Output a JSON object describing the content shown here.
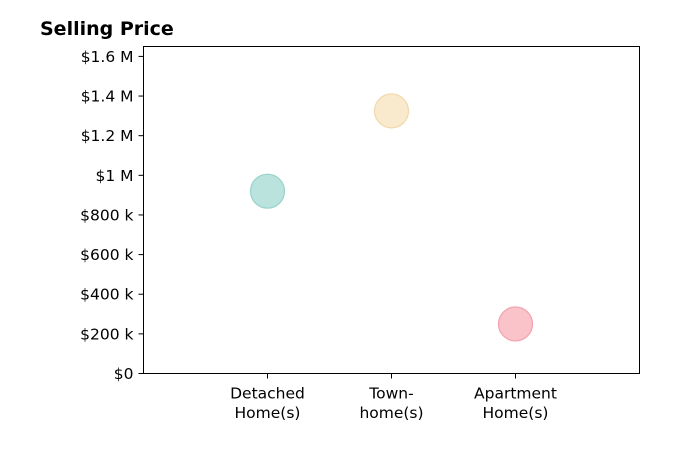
{
  "chart_data": {
    "type": "scatter",
    "title": "Selling Price",
    "xlabel": "",
    "ylabel": "",
    "categories": [
      [
        "Detached",
        "Home(s)"
      ],
      [
        "Town-",
        "home(s)"
      ],
      [
        "Apartment",
        "Home(s)"
      ]
    ],
    "values": [
      920000,
      1325000,
      250000
    ],
    "point_colors": [
      "#b2e0da",
      "#f8e7c8",
      "#f8bcc3"
    ],
    "point_edge_colors": [
      "#97d2cb",
      "#f1d9ad",
      "#f1a2ad"
    ],
    "ylim": [
      0,
      1650000
    ],
    "xlim": [
      0,
      4
    ],
    "yticks": [
      {
        "value": 0,
        "label": "$0"
      },
      {
        "value": 200000,
        "label": "$200 k"
      },
      {
        "value": 400000,
        "label": "$400 k"
      },
      {
        "value": 600000,
        "label": "$600 k"
      },
      {
        "value": 800000,
        "label": "$800 k"
      },
      {
        "value": 1000000,
        "label": "$1 M"
      },
      {
        "value": 1200000,
        "label": "$1.2 M"
      },
      {
        "value": 1400000,
        "label": "$1.4 M"
      },
      {
        "value": 1600000,
        "label": "$1.6 M"
      }
    ],
    "grid": false,
    "legend": "none"
  }
}
